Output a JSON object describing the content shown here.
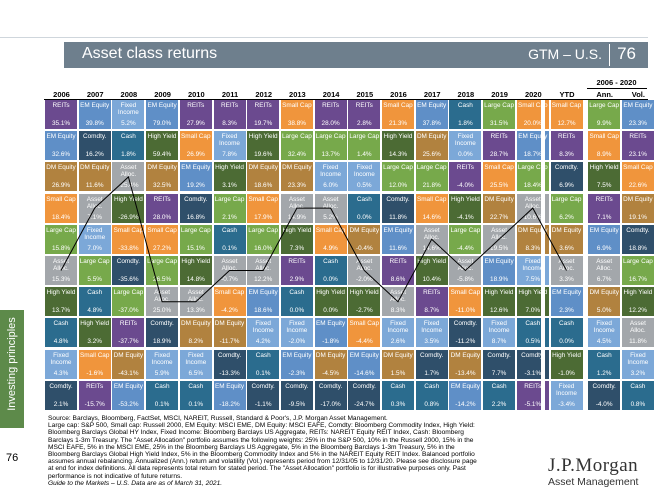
{
  "header": {
    "title": "Asset class returns",
    "section": "GTM – U.S.",
    "page_number": "76"
  },
  "sidebar": {
    "label": "Investing principles"
  },
  "page_footer_number": "76",
  "range_label": "2006 - 2020",
  "columns": [
    "2006",
    "2007",
    "2008",
    "2009",
    "2010",
    "2011",
    "2012",
    "2013",
    "2014",
    "2015",
    "2016",
    "2017",
    "2018",
    "2019",
    "2020",
    "YTD",
    "Ann.",
    "Vol."
  ],
  "asset_colors": {
    "REITs": "#6b4a8f",
    "EM Equity": "#5f8fc7",
    "Small Cap": "#f0953c",
    "Large Cap": "#77a94b",
    "Comdty.": "#2f4f6a",
    "Cash": "#2b6c8e",
    "High Yield": "#4c6b34",
    "Fixed Income": "#7ca8d8",
    "Asset Alloc.": "#a3a7ab",
    "DM Equity": "#b1823f"
  },
  "grid": [
    [
      [
        "REITs",
        "35.1%"
      ],
      [
        "EM Equity",
        "39.8%"
      ],
      [
        "Fixed Income",
        "5.2%"
      ],
      [
        "EM Equity",
        "79.0%"
      ],
      [
        "REITs",
        "27.9%"
      ],
      [
        "REITs",
        "8.3%"
      ],
      [
        "REITs",
        "19.7%"
      ],
      [
        "Small Cap",
        "38.8%"
      ],
      [
        "REITs",
        "28.0%"
      ],
      [
        "REITs",
        "2.8%"
      ],
      [
        "Small Cap",
        "21.3%"
      ],
      [
        "EM Equity",
        "37.8%"
      ],
      [
        "Cash",
        "1.8%"
      ],
      [
        "Large Cap",
        "31.5%"
      ],
      [
        "Small Cap",
        "20.0%"
      ],
      [
        "Small Cap",
        "12.7%"
      ],
      [
        "Large Cap",
        "9.9%"
      ],
      [
        "EM Equity",
        "23.3%"
      ]
    ],
    [
      [
        "EM Equity",
        "32.6%"
      ],
      [
        "Comdty.",
        "16.2%"
      ],
      [
        "Cash",
        "1.8%"
      ],
      [
        "High Yield",
        "59.4%"
      ],
      [
        "Small Cap",
        "26.9%"
      ],
      [
        "Fixed Income",
        "7.8%"
      ],
      [
        "High Yield",
        "19.6%"
      ],
      [
        "Large Cap",
        "32.4%"
      ],
      [
        "Large Cap",
        "13.7%"
      ],
      [
        "Large Cap",
        "1.4%"
      ],
      [
        "High Yield",
        "14.3%"
      ],
      [
        "DM Equity",
        "25.6%"
      ],
      [
        "Fixed Income",
        "0.0%"
      ],
      [
        "REITs",
        "28.7%"
      ],
      [
        "EM Equity",
        "18.7%"
      ],
      [
        "REITs",
        "8.3%"
      ],
      [
        "Small Cap",
        "8.9%"
      ],
      [
        "REITs",
        "23.1%"
      ]
    ],
    [
      [
        "DM Equity",
        "26.9%"
      ],
      [
        "DM Equity",
        "11.6%"
      ],
      [
        "Asset Alloc.",
        "-25.4%"
      ],
      [
        "DM Equity",
        "32.5%"
      ],
      [
        "EM Equity",
        "19.2%"
      ],
      [
        "High Yield",
        "3.1%"
      ],
      [
        "DM Equity",
        "18.6%"
      ],
      [
        "DM Equity",
        "23.3%"
      ],
      [
        "Fixed Income",
        "6.0%"
      ],
      [
        "Fixed Income",
        "0.5%"
      ],
      [
        "Large Cap",
        "12.0%"
      ],
      [
        "Large Cap",
        "21.8%"
      ],
      [
        "REITs",
        "-4.0%"
      ],
      [
        "Small Cap",
        "25.5%"
      ],
      [
        "Large Cap",
        "18.4%"
      ],
      [
        "Comdty.",
        "6.9%"
      ],
      [
        "High Yield",
        "7.5%"
      ],
      [
        "Small Cap",
        "22.6%"
      ]
    ],
    [
      [
        "Small Cap",
        "18.4%"
      ],
      [
        "Asset Alloc.",
        "7.1%"
      ],
      [
        "High Yield",
        "-26.9%"
      ],
      [
        "REITs",
        "28.0%"
      ],
      [
        "Comdty.",
        "16.8%"
      ],
      [
        "Large Cap",
        "2.1%"
      ],
      [
        "Small Cap",
        "17.9%"
      ],
      [
        "Asset Alloc.",
        "14.9%"
      ],
      [
        "Asset Alloc.",
        "5.2%"
      ],
      [
        "Cash",
        "0.0%"
      ],
      [
        "Comdty.",
        "11.8%"
      ],
      [
        "Small Cap",
        "14.6%"
      ],
      [
        "High Yield",
        "-4.1%"
      ],
      [
        "DM Equity",
        "22.7%"
      ],
      [
        "Asset Alloc.",
        "10.6%"
      ],
      [
        "Large Cap",
        "6.2%"
      ],
      [
        "REITs",
        "7.1%"
      ],
      [
        "DM Equity",
        "19.1%"
      ]
    ],
    [
      [
        "Large Cap",
        "15.8%"
      ],
      [
        "Fixed Income",
        "7.0%"
      ],
      [
        "Small Cap",
        "-33.8%"
      ],
      [
        "Small Cap",
        "27.2%"
      ],
      [
        "Large Cap",
        "15.1%"
      ],
      [
        "Cash",
        "0.1%"
      ],
      [
        "Large Cap",
        "16.0%"
      ],
      [
        "High Yield",
        "7.3%"
      ],
      [
        "Small Cap",
        "4.9%"
      ],
      [
        "DM Equity",
        "-0.4%"
      ],
      [
        "EM Equity",
        "11.6%"
      ],
      [
        "Asset Alloc.",
        "14.6%"
      ],
      [
        "Large Cap",
        "-4.4%"
      ],
      [
        "Asset Alloc.",
        "19.5%"
      ],
      [
        "DM Equity",
        "8.3%"
      ],
      [
        "DM Equity",
        "3.6%"
      ],
      [
        "EM Equity",
        "6.9%"
      ],
      [
        "Comdty.",
        "18.8%"
      ]
    ],
    [
      [
        "Asset Alloc.",
        "15.3%"
      ],
      [
        "Large Cap",
        "5.5%"
      ],
      [
        "Comdty.",
        "-35.6%"
      ],
      [
        "Large Cap",
        "26.5%"
      ],
      [
        "High Yield",
        "14.8%"
      ],
      [
        "Asset Alloc.",
        "-0.7%"
      ],
      [
        "Asset Alloc.",
        "12.2%"
      ],
      [
        "REITs",
        "2.9%"
      ],
      [
        "Cash",
        "0.0%"
      ],
      [
        "Asset Alloc.",
        "-2.0%"
      ],
      [
        "REITs",
        "8.6%"
      ],
      [
        "High Yield",
        "10.4%"
      ],
      [
        "Asset Alloc.",
        "-5.8%"
      ],
      [
        "EM Equity",
        "18.9%"
      ],
      [
        "Fixed Income",
        "7.5%"
      ],
      [
        "Asset Alloc.",
        "3.3%"
      ],
      [
        "Asset Alloc.",
        "6.7%"
      ],
      [
        "Large Cap",
        "16.7%"
      ]
    ],
    [
      [
        "High Yield",
        "13.7%"
      ],
      [
        "Cash",
        "4.8%"
      ],
      [
        "Large Cap",
        "-37.0%"
      ],
      [
        "Asset Alloc.",
        "25.0%"
      ],
      [
        "Asset Alloc.",
        "13.3%"
      ],
      [
        "Small Cap",
        "-4.2%"
      ],
      [
        "EM Equity",
        "18.6%"
      ],
      [
        "Cash",
        "0.0%"
      ],
      [
        "High Yield",
        "0.0%"
      ],
      [
        "High Yield",
        "-2.7%"
      ],
      [
        "Asset Alloc.",
        "8.3%"
      ],
      [
        "REITs",
        "8.7%"
      ],
      [
        "Small Cap",
        "-11.0%"
      ],
      [
        "High Yield",
        "12.6%"
      ],
      [
        "High Yield",
        "7.0%"
      ],
      [
        "EM Equity",
        "2.3%"
      ],
      [
        "DM Equity",
        "5.0%"
      ],
      [
        "High Yield",
        "12.2%"
      ]
    ],
    [
      [
        "Cash",
        "4.8%"
      ],
      [
        "High Yield",
        "3.2%"
      ],
      [
        "REITs",
        "-37.7%"
      ],
      [
        "Comdty.",
        "18.9%"
      ],
      [
        "DM Equity",
        "8.2%"
      ],
      [
        "DM Equity",
        "-11.7%"
      ],
      [
        "Fixed Income",
        "4.2%"
      ],
      [
        "Fixed Income",
        "-2.0%"
      ],
      [
        "EM Equity",
        "-1.8%"
      ],
      [
        "Small Cap",
        "-4.4%"
      ],
      [
        "Fixed Income",
        "2.6%"
      ],
      [
        "Fixed Income",
        "3.5%"
      ],
      [
        "Comdty.",
        "-11.2%"
      ],
      [
        "Fixed Income",
        "8.7%"
      ],
      [
        "Cash",
        "0.5%"
      ],
      [
        "Cash",
        "0.0%"
      ],
      [
        "Fixed Income",
        "4.5%"
      ],
      [
        "Asset Alloc.",
        "11.8%"
      ]
    ],
    [
      [
        "Fixed Income",
        "4.3%"
      ],
      [
        "Small Cap",
        "-1.6%"
      ],
      [
        "DM Equity",
        "-43.1%"
      ],
      [
        "Fixed Income",
        "5.9%"
      ],
      [
        "Fixed Income",
        "6.5%"
      ],
      [
        "Comdty.",
        "-13.3%"
      ],
      [
        "Cash",
        "0.1%"
      ],
      [
        "EM Equity",
        "-2.3%"
      ],
      [
        "DM Equity",
        "-4.5%"
      ],
      [
        "EM Equity",
        "-14.6%"
      ],
      [
        "DM Equity",
        "1.5%"
      ],
      [
        "Comdty.",
        "1.7%"
      ],
      [
        "DM Equity",
        "-13.4%"
      ],
      [
        "Comdty.",
        "7.7%"
      ],
      [
        "Comdty.",
        "-3.1%"
      ],
      [
        "High Yield",
        "-1.0%"
      ],
      [
        "Cash",
        "1.2%"
      ],
      [
        "Fixed Income",
        "3.2%"
      ]
    ],
    [
      [
        "Comdty.",
        "2.1%"
      ],
      [
        "REITs",
        "-15.7%"
      ],
      [
        "EM Equity",
        "-53.2%"
      ],
      [
        "Cash",
        "0.1%"
      ],
      [
        "Cash",
        "0.1%"
      ],
      [
        "EM Equity",
        "-18.2%"
      ],
      [
        "Comdty.",
        "-1.1%"
      ],
      [
        "Comdty.",
        "-9.5%"
      ],
      [
        "Comdty.",
        "-17.0%"
      ],
      [
        "Comdty.",
        "-24.7%"
      ],
      [
        "Cash",
        "0.3%"
      ],
      [
        "Cash",
        "0.8%"
      ],
      [
        "EM Equity",
        "-14.2%"
      ],
      [
        "Cash",
        "2.2%"
      ],
      [
        "REITs",
        "-5.1%"
      ],
      [
        "Fixed Income",
        "-3.4%"
      ],
      [
        "Comdty.",
        "-4.0%"
      ],
      [
        "Cash",
        "0.8%"
      ]
    ]
  ],
  "footer": {
    "lines": [
      "Source: Barclays, Bloomberg, FactSet, MSCI, NAREIT, Russell, Standard & Poor's, J.P. Morgan Asset Management.",
      "Large cap: S&P 500, Small cap: Russell 2000, EM Equity: MSCI EME, DM Equity: MSCI EAFE, Comdty: Bloomberg Commodity Index, High Yield:",
      "Bloomberg Barclays Global HY Index, Fixed Income: Bloomberg Barclays US Aggregate, REITs: NAREIT Equity REIT Index, Cash: Bloomberg",
      "Barclays 1-3m Treasury. The \"Asset Allocation\" portfolio assumes the following weights: 25% in the S&P 500, 10% in the Russell 2000, 15% in the",
      "MSCI EAFE, 5% in the MSCI EME, 25% in the Bloomberg Barclays US Aggregate, 5% in the Bloomberg Barclays 1-3m Treasury, 5% in the",
      "Bloomberg Barclays Global High Yield Index, 5% in the Bloomberg Commodity Index and 5% in the NAREIT Equity REIT Index. Balanced portfolio",
      "assumes annual rebalancing. Annualized (Ann.) return and volatility (Vol.) represents period from 12/31/05 to 12/31/20. Please see disclosure page",
      "at end for index definitions. All data represents total return for stated period. The \"Asset Allocation\" portfolio is for illustrative purposes only. Past",
      "performance is not indicative of future returns."
    ],
    "guide": "Guide to the Markets – U.S. Data are as of March 31, 2021."
  },
  "logo": {
    "main": "J.P.Morgan",
    "sub": "Asset Management"
  }
}
